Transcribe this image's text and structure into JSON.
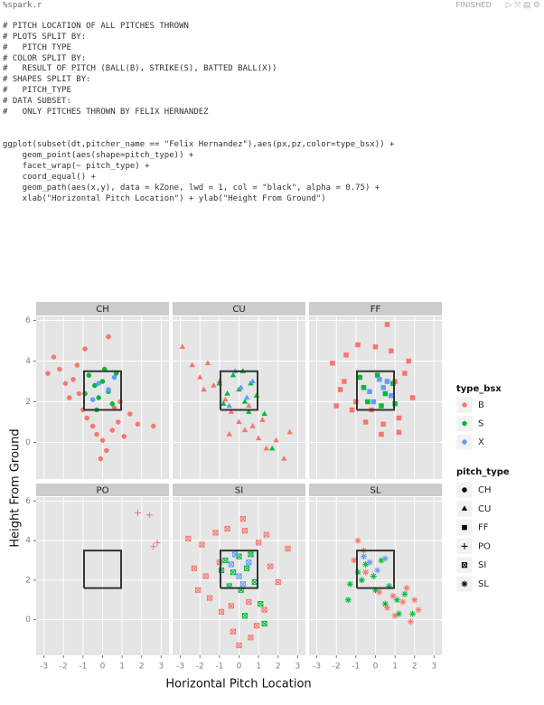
{
  "header": {
    "cell_label": "%spark.r",
    "status": "FINISHED"
  },
  "code": [
    "# PITCH LOCATION OF ALL PITCHES THROWN",
    "# PLOTS SPLIT BY:",
    "#   PITCH TYPE",
    "# COLOR SPLIT BY:",
    "#   RESULT OF PITCH (BALL(B), STRIKE(S), BATTED BALL(X))",
    "# SHAPES SPLIT BY:",
    "#   PITCH_TYPE",
    "# DATA SUBSET:",
    "#   ONLY PITCHES THROWN BY FELIX HERNANDEZ",
    "ggplot(subset(dt,pitcher_name == \"Felix Hernandez\"),aes(px,pz,color=type_bsx)) +",
    "    geom_point(aes(shape=pitch_type)) +",
    "    facet_wrap(~ pitch_type) +",
    "    coord_equal() +",
    "    geom_path(aes(x,y), data = kZone, lwd = 1, col = \"black\", alpha = 0.75) +",
    "    xlab(\"Horizontal Pitch Location\") + ylab(\"Height From Ground\")"
  ],
  "chart_data": {
    "type": "scatter",
    "x_label": "Horizontal Pitch Location",
    "y_label": "Height From Ground",
    "xlim": [
      -3.4,
      3.4
    ],
    "ylim": [
      -1.8,
      6.2
    ],
    "xticks": [
      -3,
      -2,
      -1,
      0,
      1,
      2,
      3
    ],
    "yticks": [
      0,
      2,
      4,
      6
    ],
    "grid": true,
    "kzone": {
      "x": [
        -0.95,
        0.95,
        0.95,
        -0.95,
        -0.95
      ],
      "y": [
        1.6,
        1.6,
        3.5,
        3.5,
        1.6
      ],
      "color": "#333333"
    },
    "color_legend_title": "type_bsx",
    "series": [
      {
        "name": "B",
        "color": "#F8766D"
      },
      {
        "name": "S",
        "color": "#00BA38"
      },
      {
        "name": "X",
        "color": "#619CFF"
      }
    ],
    "shape_legend": {
      "title": "pitch_type",
      "items": [
        {
          "label": "CH",
          "shape": "circle"
        },
        {
          "label": "CU",
          "shape": "triangle"
        },
        {
          "label": "FF",
          "shape": "square"
        },
        {
          "label": "PO",
          "shape": "plus"
        },
        {
          "label": "SI",
          "shape": "boxed-x"
        },
        {
          "label": "SL",
          "shape": "asterisk"
        }
      ]
    },
    "panels": [
      {
        "title": "CH",
        "shape": "circle",
        "series": [
          {
            "x": [
              -2.8,
              -2.2,
              -1.9,
              -1.5,
              -1.2,
              -1.0,
              -0.8,
              -0.5,
              -0.3,
              0,
              0.2,
              0.5,
              0.8,
              1.1,
              1.4,
              1.8,
              2.6,
              -2.5,
              -1.7,
              -0.9,
              0.3,
              -0.1,
              0.9,
              -1.3,
              0.6
            ],
            "y": [
              3.4,
              3.6,
              2.9,
              3.1,
              2.4,
              1.6,
              1.2,
              0.8,
              0.4,
              0.1,
              -0.4,
              0.6,
              1.0,
              0.3,
              1.4,
              0.9,
              0.8,
              4.2,
              2.2,
              4.6,
              5.2,
              -0.8,
              2.0,
              3.8,
              1.7
            ]
          },
          {
            "x": [
              -0.7,
              -0.4,
              -0.2,
              0,
              0.3,
              0.5,
              -0.9,
              0.7,
              -0.3,
              0.1
            ],
            "y": [
              3.3,
              2.8,
              2.2,
              3.0,
              2.5,
              1.9,
              2.4,
              3.4,
              1.6,
              3.6
            ]
          },
          {
            "x": [
              -0.2,
              0.3,
              0.6,
              -0.5
            ],
            "y": [
              2.9,
              2.6,
              3.2,
              2.1
            ]
          }
        ]
      },
      {
        "title": "CU",
        "shape": "triangle",
        "series": [
          {
            "x": [
              -2.9,
              -2.4,
              -2.0,
              -1.6,
              -1.3,
              -1.0,
              -0.7,
              -0.4,
              0,
              0.3,
              0.7,
              1.0,
              1.4,
              1.9,
              2.3,
              -1.8,
              -0.5,
              0.5,
              1.2,
              2.6
            ],
            "y": [
              4.7,
              3.8,
              3.2,
              3.9,
              2.8,
              3.0,
              2.1,
              1.5,
              1.0,
              0.6,
              0.8,
              0.2,
              -0.3,
              0.1,
              -0.8,
              2.6,
              0.4,
              1.8,
              1.1,
              0.5
            ]
          },
          {
            "x": [
              -1.0,
              -0.6,
              -0.3,
              0,
              0.3,
              0.6,
              0.9,
              1.3,
              -0.8,
              0.2,
              1.7,
              0.5
            ],
            "y": [
              2.9,
              2.4,
              3.3,
              2.6,
              2.0,
              2.9,
              2.3,
              1.4,
              1.9,
              3.5,
              -0.3,
              1.5
            ]
          },
          {
            "x": [
              -0.2,
              0.1,
              0.4,
              -0.5,
              0.7
            ],
            "y": [
              3.5,
              2.7,
              2.2,
              1.8,
              3.0
            ]
          }
        ]
      },
      {
        "title": "FF",
        "shape": "square",
        "series": [
          {
            "x": [
              -2.2,
              -1.8,
              -1.5,
              -1.2,
              -0.9,
              -0.5,
              0,
              0.4,
              0.8,
              1.2,
              1.5,
              1.9,
              -1.6,
              1.7,
              -0.2,
              0.6,
              -1.0,
              1.0,
              0.3,
              -2.0,
              1.2
            ],
            "y": [
              3.9,
              2.6,
              4.3,
              1.6,
              4.8,
              1.0,
              4.7,
              0.9,
              4.5,
              1.2,
              3.4,
              2.2,
              3.0,
              4.0,
              1.6,
              5.8,
              2.0,
              3.0,
              0.4,
              1.8,
              0.5
            ]
          },
          {
            "x": [
              -0.8,
              -0.4,
              0.1,
              0.5,
              0.9,
              -0.6,
              0.3,
              1.0
            ],
            "y": [
              3.2,
              2.0,
              3.3,
              2.4,
              2.9,
              2.7,
              1.8,
              1.9
            ]
          },
          {
            "x": [
              -0.3,
              0.2,
              0.6,
              0.8,
              -0.1,
              0.4
            ],
            "y": [
              2.5,
              3.1,
              3.0,
              2.3,
              2.0,
              2.7
            ]
          }
        ]
      },
      {
        "title": "PO",
        "shape": "plus",
        "series": [
          {
            "x": [
              1.8,
              2.4,
              2.6,
              2.8
            ],
            "y": [
              5.4,
              5.3,
              3.7,
              3.9
            ]
          },
          {
            "x": [],
            "y": []
          },
          {
            "x": [],
            "y": []
          }
        ]
      },
      {
        "title": "SI",
        "shape": "boxed-x",
        "series": [
          {
            "x": [
              -2.6,
              -2.3,
              -1.9,
              -1.5,
              -1.2,
              -0.9,
              -0.6,
              -0.3,
              0,
              0.3,
              0.6,
              1.0,
              1.3,
              1.6,
              2.0,
              2.5,
              -1.7,
              1.4,
              -0.4,
              0.5,
              -1.0,
              0.9,
              0.2,
              -2.1
            ],
            "y": [
              4.1,
              2.6,
              3.8,
              1.1,
              4.4,
              0.4,
              4.6,
              -0.6,
              -1.3,
              4.5,
              -0.9,
              3.9,
              0.5,
              2.7,
              1.9,
              3.6,
              2.2,
              4.3,
              0.7,
              0.9,
              2.9,
              -0.3,
              5.1,
              1.5
            ]
          },
          {
            "x": [
              -0.7,
              -0.3,
              0,
              0.4,
              0.8,
              -0.5,
              0.1,
              0.6,
              1.1,
              -0.9,
              0.3,
              1.3
            ],
            "y": [
              3.0,
              2.4,
              3.2,
              2.6,
              1.9,
              1.7,
              1.5,
              3.3,
              0.8,
              2.5,
              0.2,
              -0.2
            ]
          },
          {
            "x": [
              -0.4,
              0,
              0.5,
              0.2,
              -0.2
            ],
            "y": [
              2.8,
              2.2,
              2.9,
              1.8,
              3.3
            ]
          }
        ]
      },
      {
        "title": "SL",
        "shape": "asterisk",
        "series": [
          {
            "x": [
              -0.9,
              -0.6,
              -0.3,
              0.2,
              0.6,
              1.0,
              1.4,
              1.8,
              2.2,
              -1.1,
              0.9,
              1.6,
              -0.5,
              2.0
            ],
            "y": [
              4.0,
              3.5,
              2.9,
              1.4,
              0.6,
              0.2,
              0.9,
              -0.1,
              0.5,
              3.0,
              1.2,
              1.6,
              2.4,
              1.0
            ]
          },
          {
            "x": [
              -1.3,
              -0.9,
              -0.5,
              -0.1,
              0.3,
              0.7,
              1.1,
              1.5,
              1.9,
              -1.4,
              0.5,
              1.2,
              0.0,
              -0.7
            ],
            "y": [
              1.8,
              2.4,
              2.8,
              2.2,
              3.0,
              1.7,
              1.0,
              1.3,
              0.3,
              1.0,
              0.8,
              0.3,
              1.5,
              2.0
            ]
          },
          {
            "x": [
              -0.3,
              0.1,
              0.5,
              -0.6
            ],
            "y": [
              2.9,
              2.5,
              3.1,
              3.2
            ]
          }
        ]
      }
    ]
  }
}
